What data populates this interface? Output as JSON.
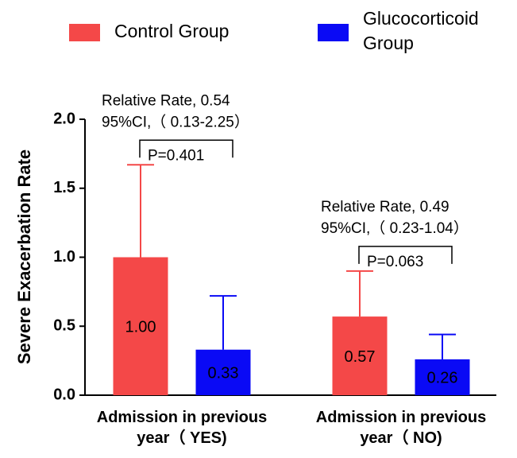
{
  "chart_data": {
    "type": "bar",
    "y_label": "Severe Exacerbation Rate",
    "categories": [
      "Admission in previous year（ YES)",
      "Admission in previous year（ NO)"
    ],
    "series": [
      {
        "name": "Control Group",
        "color": "#f44848",
        "values": [
          1.0,
          0.57
        ],
        "value_labels": [
          "1.00",
          "0.57"
        ],
        "errors": [
          0.67,
          0.33
        ]
      },
      {
        "name": "Glucocorticoid Group",
        "color": "#0a0af5",
        "values": [
          0.33,
          0.26
        ],
        "value_labels": [
          "0.33",
          "0.26"
        ],
        "errors": [
          0.39,
          0.18
        ]
      }
    ],
    "ylim": [
      0,
      2
    ],
    "yticks": [
      {
        "value": 0,
        "label": "0.0"
      },
      0.5,
      {
        "value": 1,
        "label": "1.0"
      },
      1.5,
      {
        "value": 2,
        "label": "2.0"
      }
    ],
    "annotations": [
      {
        "relative_rate": "Relative Rate, 0.54",
        "ci": "95%CI,（ 0.13-2.25）",
        "p": "P=0.401"
      },
      {
        "relative_rate": "Relative Rate, 0.49",
        "ci": "95%CI,（ 0.23-1.04）",
        "p": "P=0.063"
      }
    ]
  }
}
